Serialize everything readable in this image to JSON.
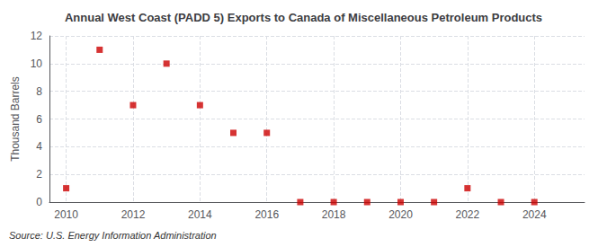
{
  "chart_data": {
    "type": "scatter",
    "title": "Annual West Coast (PADD 5) Exports to Canada of Miscellaneous Petroleum Products",
    "ylabel": "Thousand Barrels",
    "annotation": "Source: U.S. Energy Information Administration",
    "x": [
      2010,
      2011,
      2012,
      2013,
      2014,
      2015,
      2016,
      2017,
      2018,
      2019,
      2020,
      2021,
      2022,
      2023,
      2024
    ],
    "values": [
      1,
      11,
      7,
      10,
      7,
      5,
      5,
      0,
      0,
      0,
      0,
      0,
      1,
      0,
      0
    ],
    "color": "#cc0000",
    "marker": "square",
    "xlim": [
      2009.5,
      2025.5
    ],
    "xticks": [
      2010,
      2012,
      2014,
      2016,
      2018,
      2020,
      2022,
      2024
    ],
    "ylim": [
      0,
      12
    ],
    "yticks": [
      0,
      2,
      4,
      6,
      8,
      10,
      12
    ],
    "grid": true
  }
}
